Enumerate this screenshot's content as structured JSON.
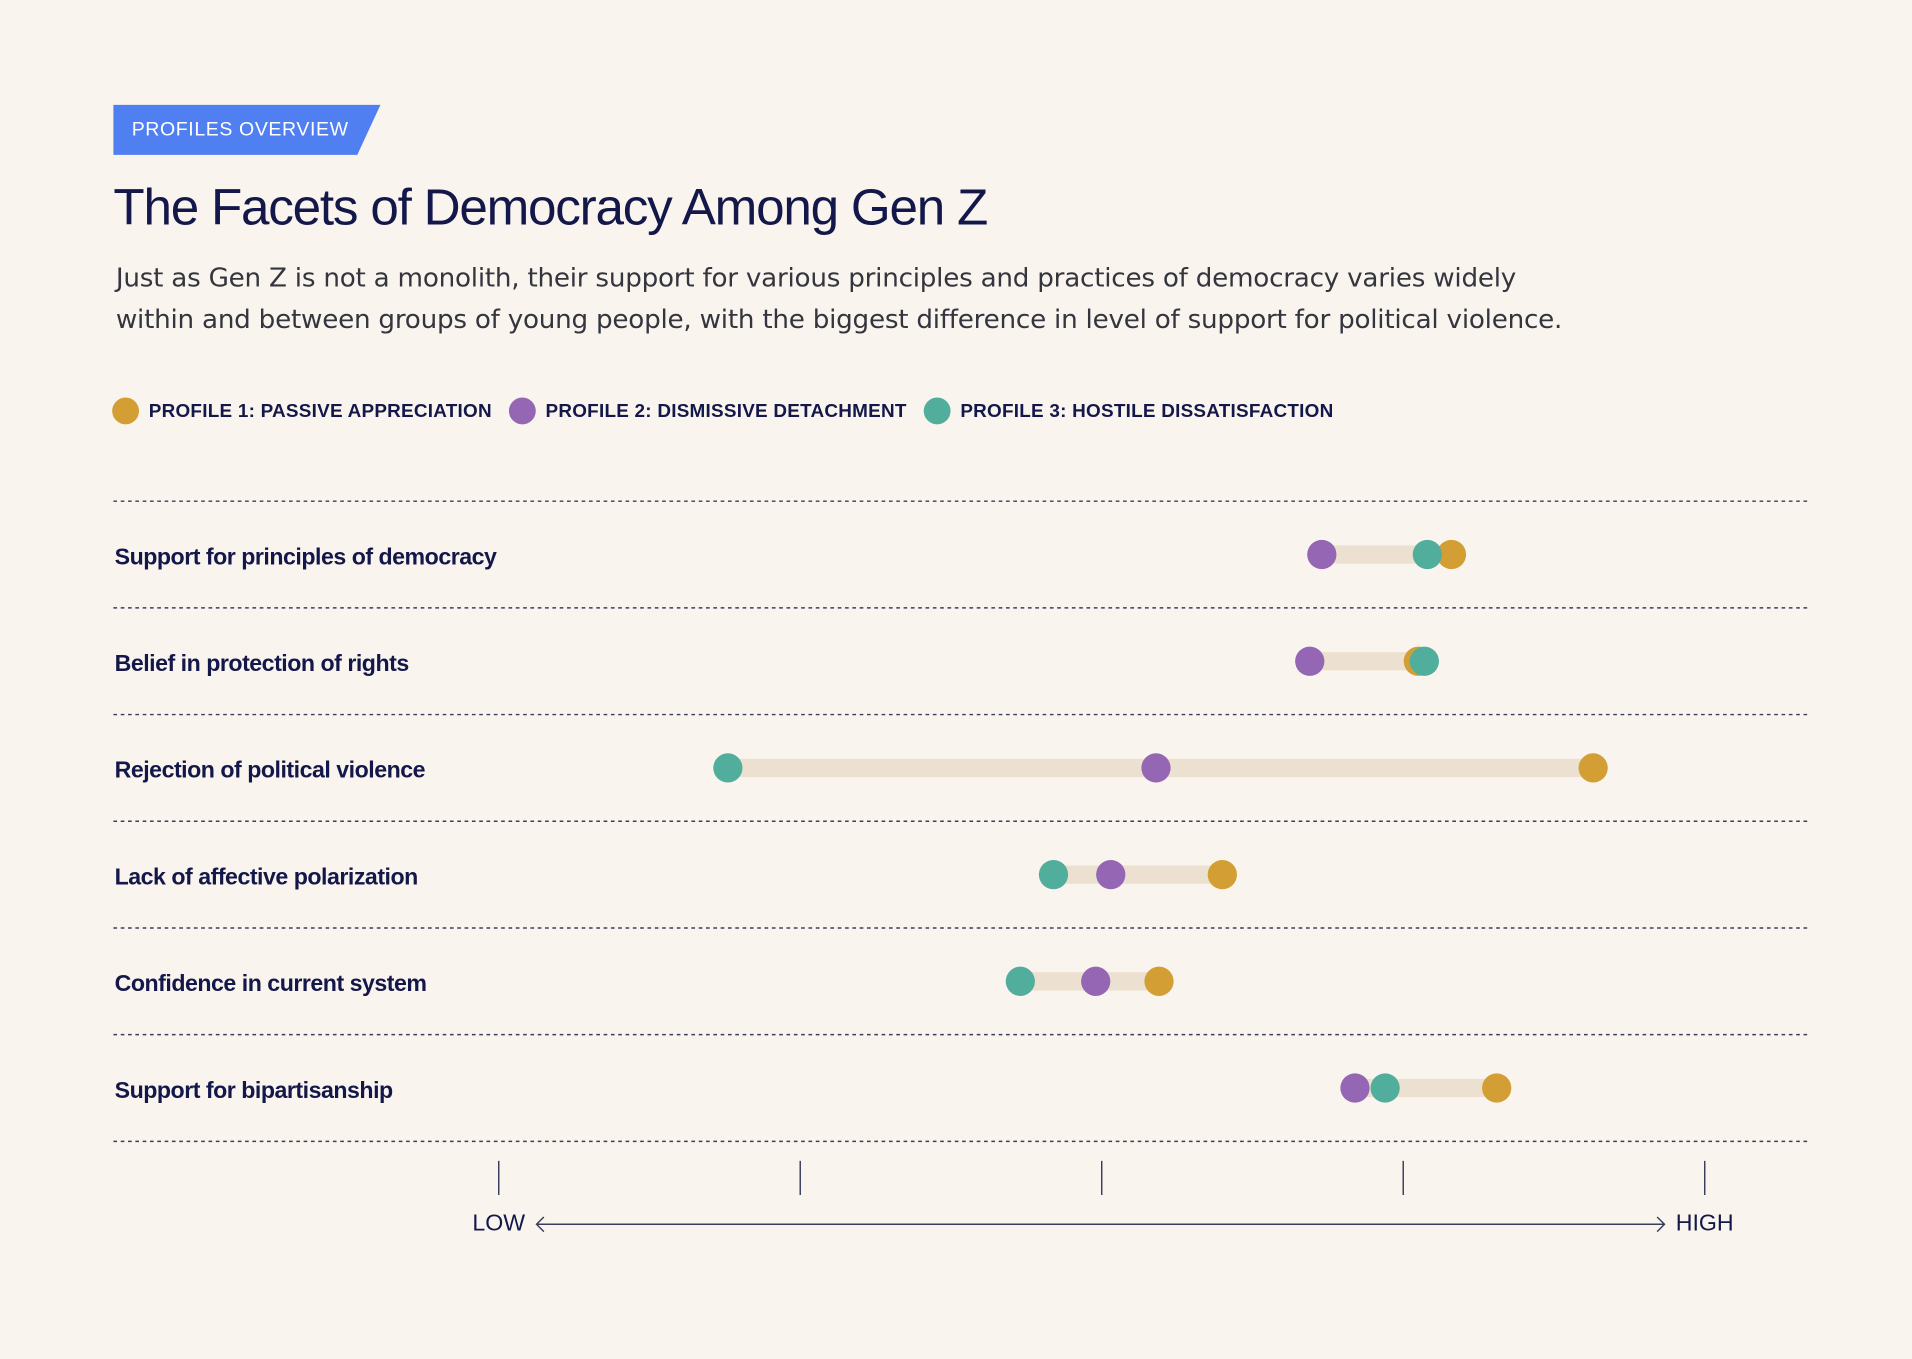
{
  "chart_data": {
    "type": "dot",
    "eyebrow": "PROFILES OVERVIEW",
    "title": "The Facets of Democracy Among Gen Z",
    "subtitle": "Just as Gen Z is not a monolith, their support for various principles and practices of democracy varies widely within and between groups of young people, with the biggest difference in level of support for political violence.",
    "categories": [
      "Support for principles of democracy",
      "Belief in protection of rights",
      "Rejection of political violence",
      "Lack of affective polarization",
      "Confidence in current system",
      "Support for bipartisanship"
    ],
    "series": [
      {
        "name": "PROFILE 1: PASSIVE APPRECIATION",
        "color": "#d39f34",
        "values": [
          3.16,
          3.05,
          3.63,
          2.4,
          2.19,
          3.31
        ]
      },
      {
        "name": "PROFILE 2: DISMISSIVE DETACHMENT",
        "color": "#9466b4",
        "values": [
          2.73,
          2.69,
          2.18,
          2.03,
          1.98,
          2.84
        ]
      },
      {
        "name": "PROFILE 3: HOSTILE DISSATISFACTION",
        "color": "#52ae9c",
        "values": [
          3.08,
          3.07,
          0.76,
          1.84,
          1.73,
          2.94
        ]
      }
    ],
    "xlim": [
      0,
      4
    ],
    "xticks": [
      0,
      1,
      2,
      3,
      4
    ],
    "x_low_label": "LOW",
    "x_high_label": "HIGH",
    "range_color": "#ece1d1"
  }
}
